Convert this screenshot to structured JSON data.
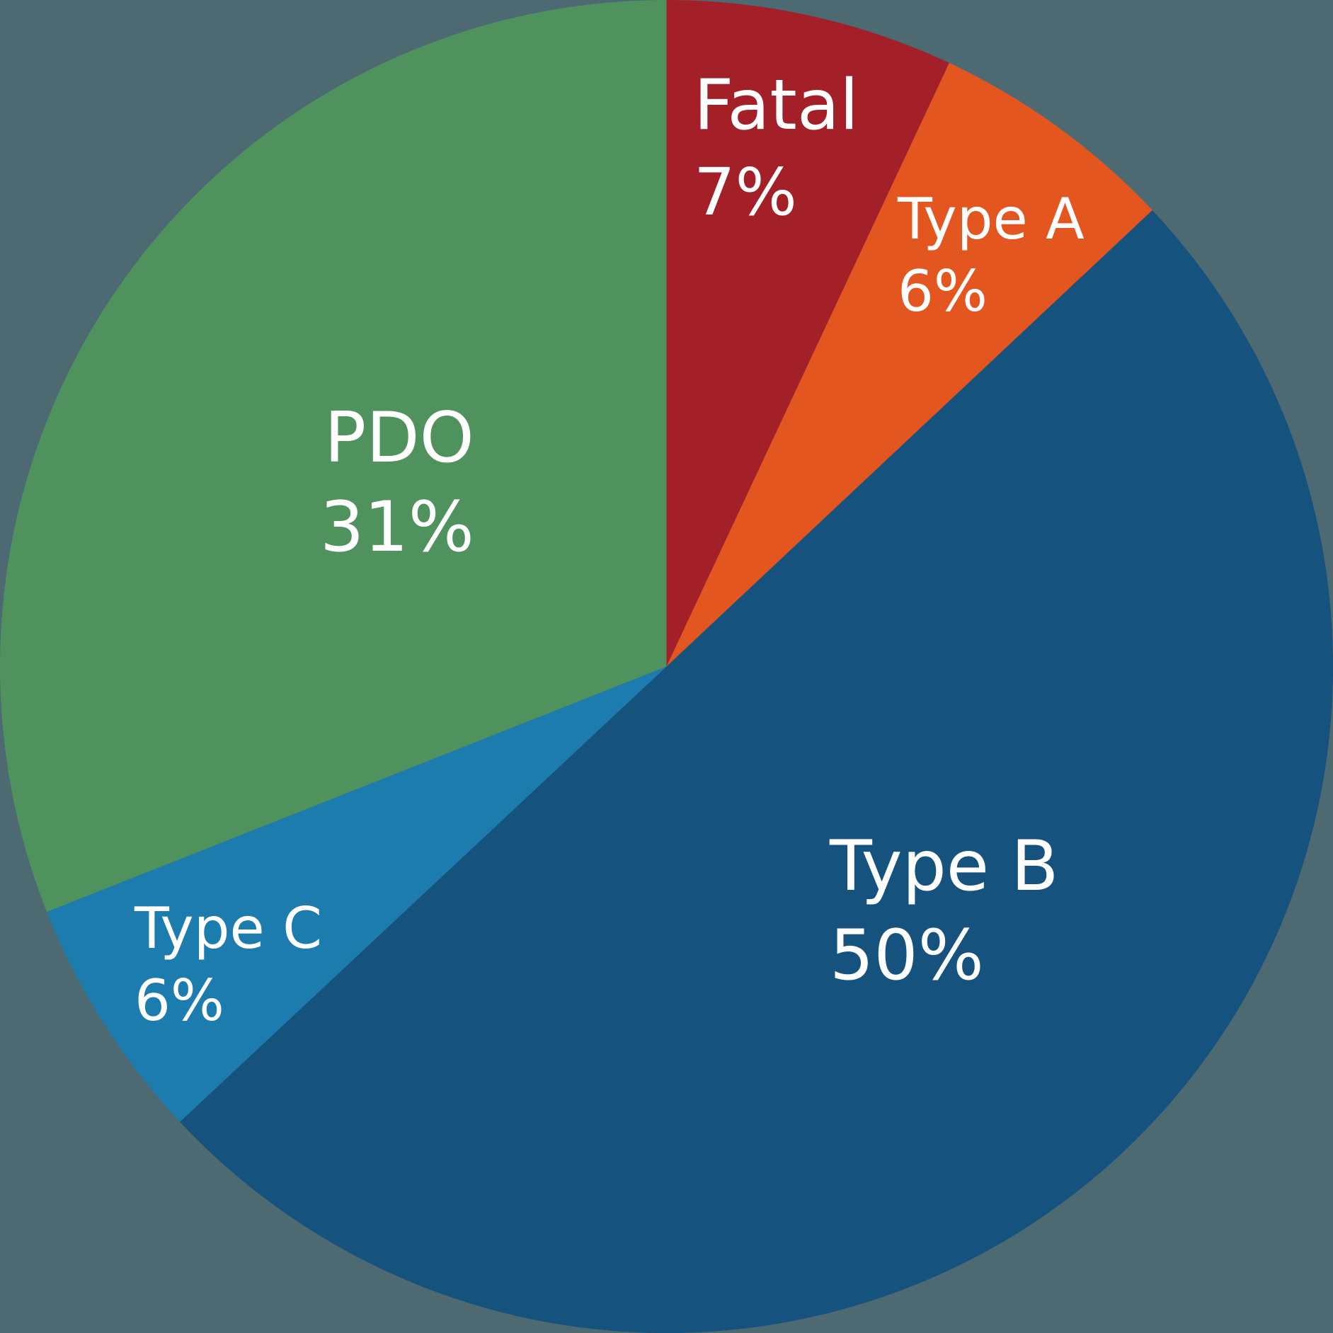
{
  "background_color": "#4d6a72",
  "chart_data": {
    "type": "pie",
    "title": "",
    "categories": [
      "Fatal",
      "Type A",
      "Type B",
      "Type C",
      "PDO"
    ],
    "values": [
      7,
      6,
      50,
      6,
      31
    ],
    "unit": "%",
    "colors": [
      "#a32028",
      "#e4561f",
      "#15527e",
      "#1b7cad",
      "#50925e"
    ],
    "start_angle_deg_clockwise_from_top": 0,
    "boundary_angles_deg": [
      0,
      25.1,
      46.8,
      226.9,
      248.4,
      360
    ],
    "legend": "none (labels inside slices)"
  },
  "labels": {
    "fatal": {
      "name": "Fatal",
      "pct": "7%"
    },
    "type_a": {
      "name": "Type A",
      "pct": "6%"
    },
    "type_b": {
      "name": "Type B",
      "pct": "50%"
    },
    "type_c": {
      "name": "Type C",
      "pct": "6%"
    },
    "pdo": {
      "name": "PDO",
      "pct": "31%"
    }
  }
}
